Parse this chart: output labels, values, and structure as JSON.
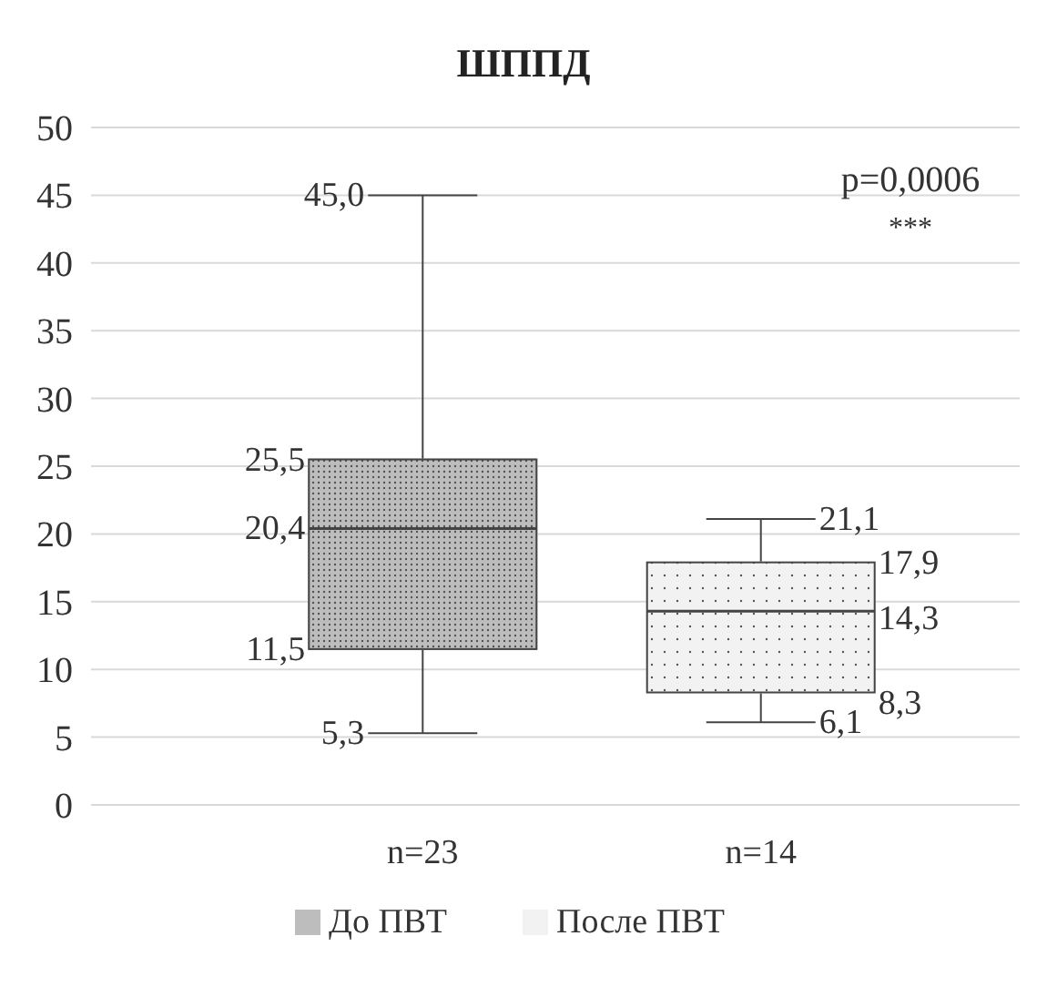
{
  "chart_data": {
    "type": "box",
    "title": "ШППД",
    "categories": [
      "n=23",
      "n=14"
    ],
    "series": [
      {
        "name": "До ПВТ",
        "color": "#bdbdbd",
        "boxes": [
          {
            "low": 5.3,
            "q1": 11.5,
            "median": 20.4,
            "q3": 25.5,
            "high": 45.0
          },
          null
        ]
      },
      {
        "name": "После ПВТ",
        "color": "#f2f2f2",
        "boxes": [
          null,
          {
            "low": 6.1,
            "q1": 8.3,
            "median": 14.3,
            "q3": 17.9,
            "high": 21.1
          }
        ]
      }
    ],
    "ylim": [
      0,
      50
    ],
    "yticks": [
      0,
      5,
      10,
      15,
      20,
      25,
      30,
      35,
      40,
      45,
      50
    ],
    "grid": "y",
    "legend": "bottom",
    "annotations": [
      "p=0,0006",
      "***",
      {
        "text": "45,0",
        "x": "n=23",
        "y": 45.0
      },
      "25,5",
      "20,4",
      "11,5",
      {
        "text": "5,3",
        "x": "n=23",
        "y": 5.3
      },
      {
        "text": "21,1",
        "x": "n=14",
        "y": 21.1
      },
      "17,9",
      "14,3",
      "8,3",
      {
        "text": "6,1",
        "x": "n=14",
        "y": 6.1
      }
    ]
  }
}
